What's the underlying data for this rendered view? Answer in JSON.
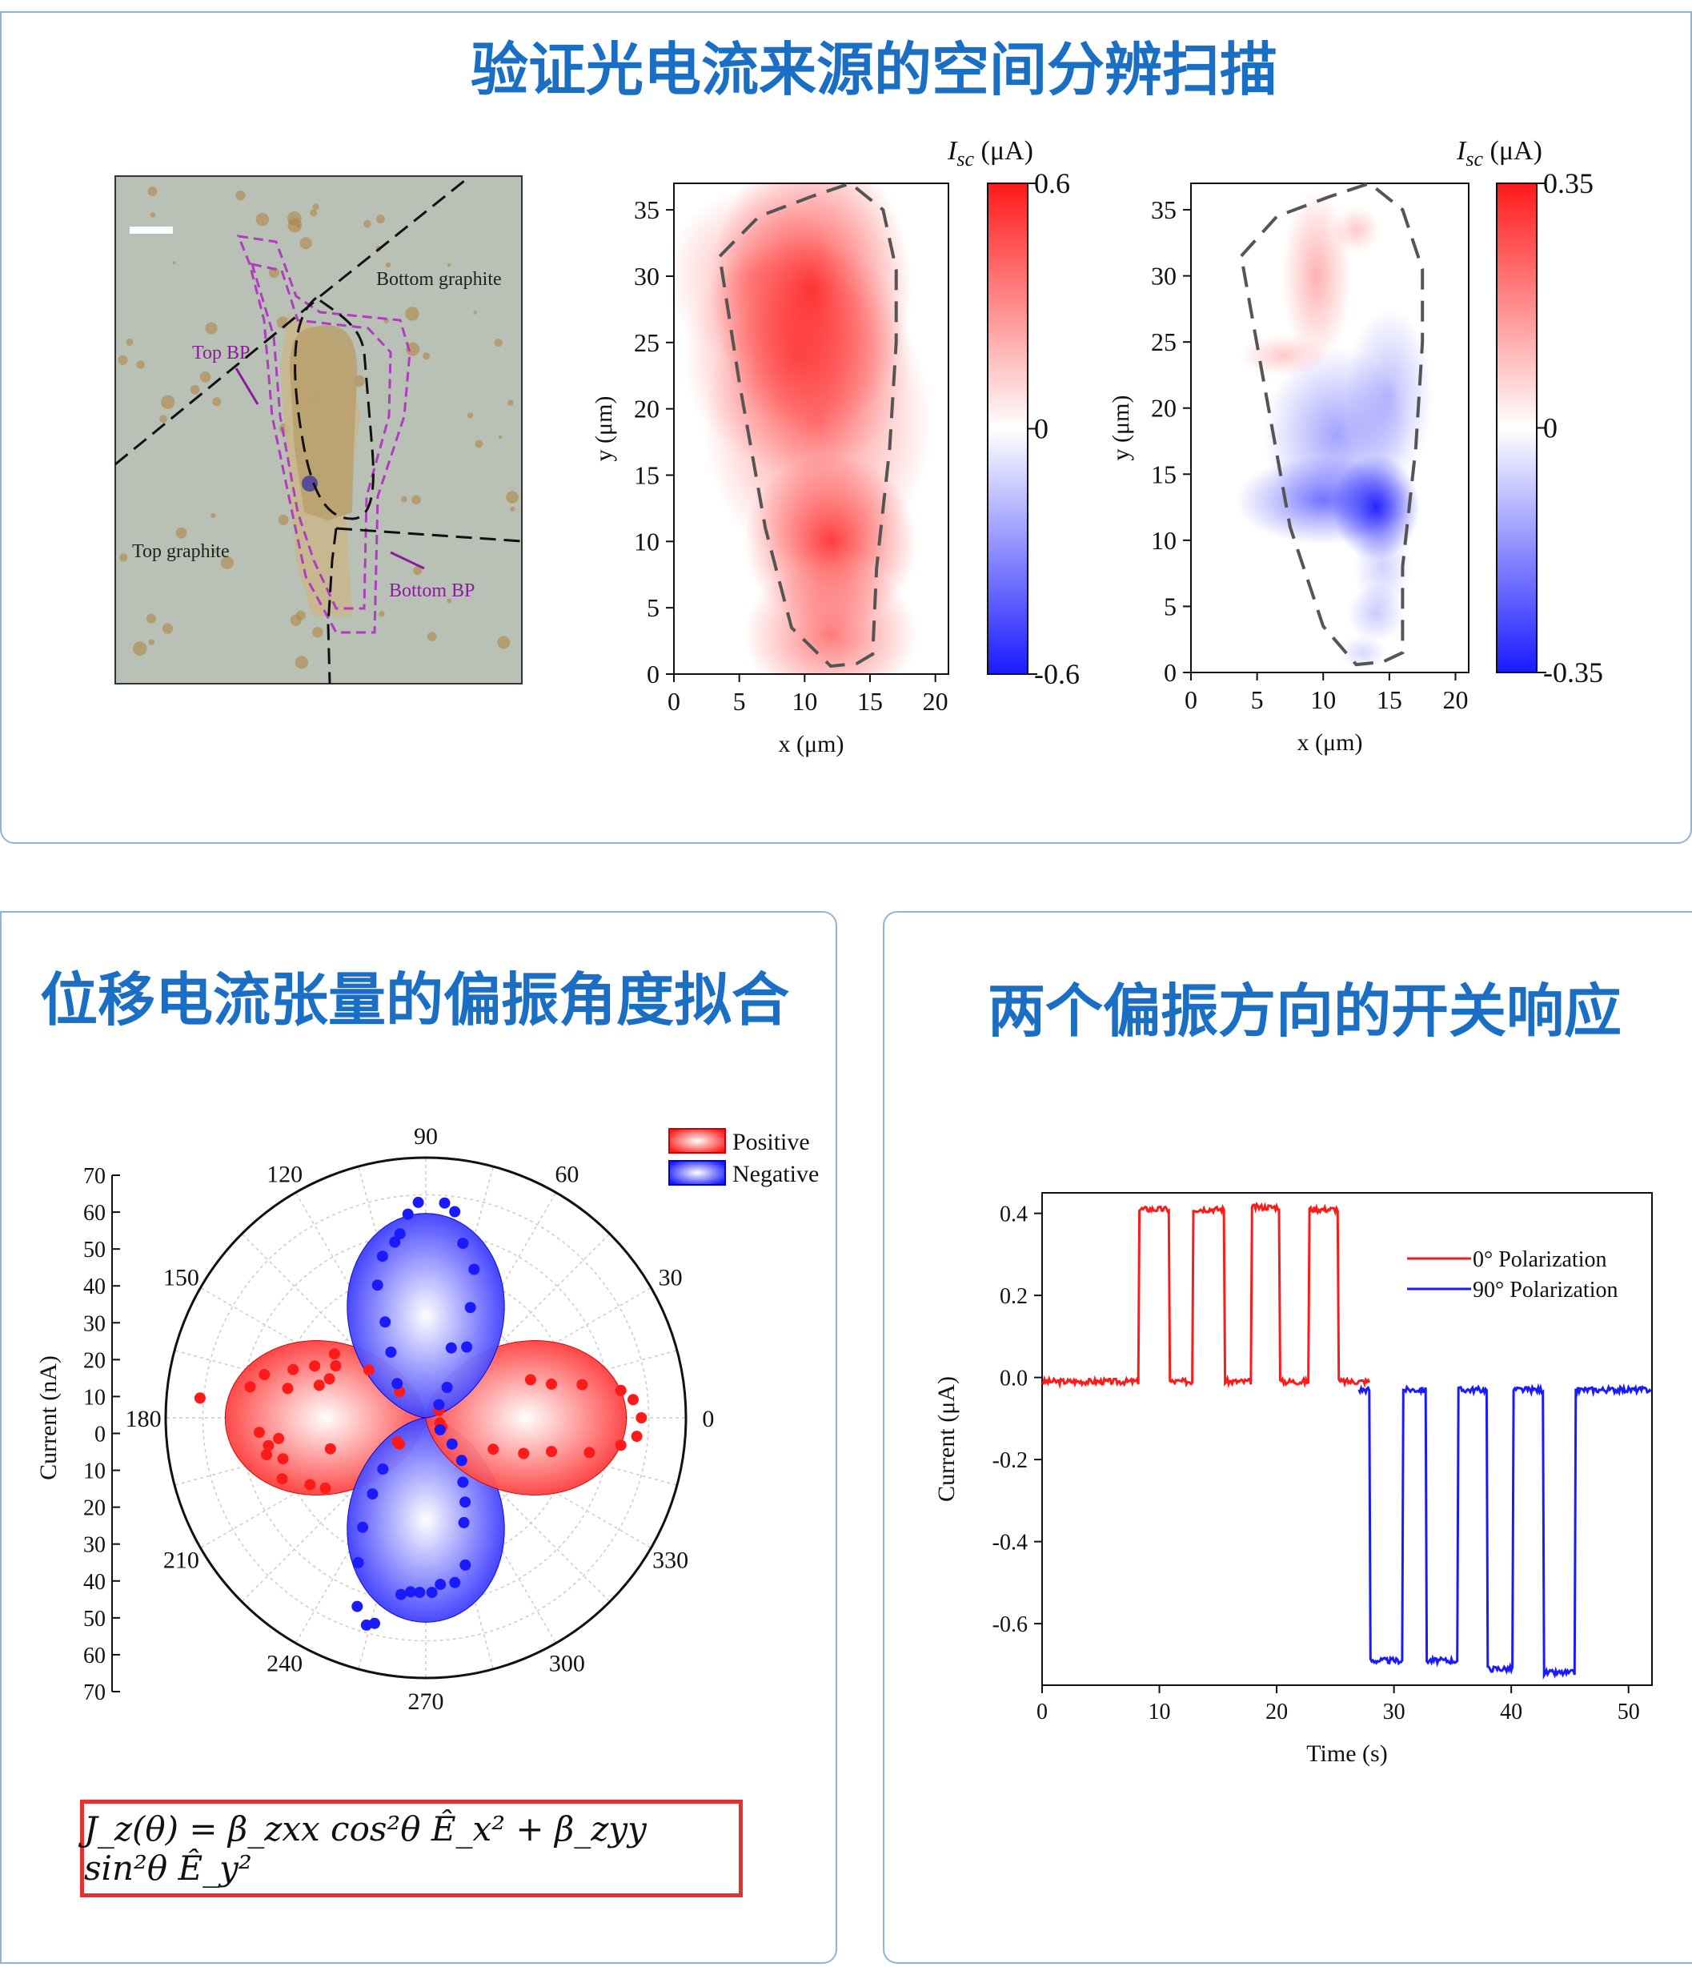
{
  "titles": {
    "top": "验证光电流来源的空间分辨扫描",
    "bottom_left": "位移电流张量的偏振角度拟合",
    "bottom_right": "两个偏振方向的开关响应"
  },
  "micrograph": {
    "labels": {
      "bottom_graphite": "Bottom graphite",
      "top_bp": "Top BP",
      "top_graphite": "Top graphite",
      "bottom_bp": "Bottom BP"
    },
    "colors": {
      "background": "#b9c0b6",
      "flake": "#c7b48a",
      "bp_outline": "#b03cc0",
      "dots": "#b07f3a"
    }
  },
  "equation": "J_z(θ) = β_zxx cos²θ Ê_x² + β_zyy sin²θ Ê_y²",
  "colors": {
    "red": "#ff1a1a",
    "blue": "#1a1aff",
    "title_blue": "#1a6fc4",
    "frame": "#8fb4d8"
  },
  "chart_data": [
    {
      "id": "map1",
      "type": "heatmap",
      "xlabel": "x (μm)",
      "ylabel": "y (μm)",
      "xlim": [
        0,
        21
      ],
      "ylim": [
        0,
        37
      ],
      "xticks": [
        0,
        5,
        10,
        15,
        20
      ],
      "yticks": [
        0,
        5,
        10,
        15,
        20,
        25,
        30,
        35
      ],
      "colorbar": {
        "title": "Isc (μA)",
        "max": 0.6,
        "min": -0.6,
        "ticks": [
          "0.6",
          "0",
          "-0.6"
        ]
      },
      "hotspots": [
        {
          "x": 10.5,
          "y": 29,
          "value": 0.5,
          "sx": 3.5,
          "sy": 5
        },
        {
          "x": 12,
          "y": 10,
          "value": 0.5,
          "sx": 3,
          "sy": 3
        },
        {
          "x": 11,
          "y": 19,
          "value": 0.3,
          "sx": 4,
          "sy": 5
        },
        {
          "x": 9.5,
          "y": 24,
          "value": 0.35,
          "sx": 4,
          "sy": 4
        },
        {
          "x": 12,
          "y": 3,
          "value": 0.35,
          "sx": 3,
          "sy": 2.5
        },
        {
          "x": 6,
          "y": 30,
          "value": 0.2,
          "sx": 3,
          "sy": 3
        }
      ],
      "outline": [
        [
          3.5,
          31.5
        ],
        [
          6.5,
          34.5
        ],
        [
          10.5,
          36
        ],
        [
          13.5,
          37
        ],
        [
          16,
          35
        ],
        [
          17,
          30.5
        ],
        [
          17,
          25
        ],
        [
          16.5,
          17
        ],
        [
          15.5,
          8
        ],
        [
          15.2,
          1.5
        ],
        [
          14,
          0.8
        ],
        [
          12,
          0.6
        ],
        [
          9,
          3.5
        ],
        [
          7,
          11
        ],
        [
          5,
          22
        ],
        [
          3.5,
          31.5
        ]
      ]
    },
    {
      "id": "map2",
      "type": "heatmap",
      "xlabel": "x (μm)",
      "ylabel": "y (μm)",
      "xlim": [
        0,
        21
      ],
      "ylim": [
        0,
        37
      ],
      "xticks": [
        0,
        5,
        10,
        15,
        20
      ],
      "yticks": [
        0,
        5,
        10,
        15,
        20,
        25,
        30,
        35
      ],
      "colorbar": {
        "title": "Isc (μA)",
        "max": 0.35,
        "min": -0.35,
        "ticks": [
          "0.35",
          "0",
          "-0.35"
        ]
      },
      "hotspots": [
        {
          "x": 9.5,
          "y": 30,
          "value": 0.12,
          "sx": 1.2,
          "sy": 3
        },
        {
          "x": 12.5,
          "y": 33.5,
          "value": 0.08,
          "sx": 0.8,
          "sy": 0.8
        },
        {
          "x": 7,
          "y": 24,
          "value": 0.08,
          "sx": 1.5,
          "sy": 0.7
        },
        {
          "x": 14,
          "y": 12.5,
          "value": -0.33,
          "sx": 1.5,
          "sy": 1.8
        },
        {
          "x": 10,
          "y": 13,
          "value": -0.2,
          "sx": 3,
          "sy": 1.5
        },
        {
          "x": 11,
          "y": 18,
          "value": -0.14,
          "sx": 2.5,
          "sy": 3
        },
        {
          "x": 15,
          "y": 21,
          "value": -0.1,
          "sx": 1.5,
          "sy": 3
        },
        {
          "x": 14,
          "y": 4.5,
          "value": -0.08,
          "sx": 1,
          "sy": 1
        },
        {
          "x": 14.5,
          "y": 8,
          "value": -0.07,
          "sx": 1,
          "sy": 1.5
        },
        {
          "x": 13,
          "y": 1.5,
          "value": -0.06,
          "sx": 0.8,
          "sy": 0.6
        }
      ],
      "outline": [
        [
          3.8,
          31.5
        ],
        [
          6.5,
          34.5
        ],
        [
          10.5,
          36
        ],
        [
          13.5,
          37
        ],
        [
          16,
          35
        ],
        [
          17.5,
          30.5
        ],
        [
          17.5,
          25
        ],
        [
          17,
          17
        ],
        [
          16,
          8
        ],
        [
          16,
          1.5
        ],
        [
          14.5,
          0.8
        ],
        [
          12.5,
          0.6
        ],
        [
          10,
          3.5
        ],
        [
          7.5,
          11
        ],
        [
          5.5,
          22
        ],
        [
          3.8,
          31.5
        ]
      ]
    },
    {
      "id": "polar",
      "type": "scatter",
      "coordinate": "polar",
      "ylabel": "Current (nA)",
      "rmax": 70,
      "radial_ticks": [
        "70",
        "60",
        "50",
        "40",
        "30",
        "20",
        "10",
        "0",
        "10",
        "20",
        "30",
        "40",
        "50",
        "60",
        "70"
      ],
      "angle_ticks": [
        0,
        30,
        60,
        90,
        120,
        150,
        180,
        210,
        240,
        270,
        300,
        330
      ],
      "legend": [
        "Positive",
        "Negative"
      ],
      "legend_position": "top-right",
      "fit": {
        "positive_amplitude": 54,
        "negative_amplitude": 55
      },
      "series": [
        {
          "name": "Positive",
          "points": [
            [
              0,
              58
            ],
            [
              5,
              56
            ],
            [
              8,
              53
            ],
            [
              12,
              43
            ],
            [
              15,
              35
            ],
            [
              20,
              30
            ],
            [
              -5,
              57
            ],
            [
              -8,
              53
            ],
            [
              -12,
              45
            ],
            [
              -15,
              35
            ],
            [
              -20,
              28
            ],
            [
              -25,
              20
            ],
            [
              175,
              61
            ],
            [
              170,
              48
            ],
            [
              168,
              38
            ],
            [
              165,
              45
            ],
            [
              163,
              30
            ],
            [
              160,
              38
            ],
            [
              158,
              28
            ],
            [
              155,
              33
            ],
            [
              150,
              28
            ],
            [
              185,
              45
            ],
            [
              188,
              40
            ],
            [
              190,
              43
            ],
            [
              193,
              44
            ],
            [
              196,
              40
            ],
            [
              198,
              27
            ],
            [
              203,
              42
            ],
            [
              210,
              36
            ],
            [
              215,
              33
            ],
            [
              145,
              30
            ],
            [
              140,
              20
            ],
            [
              135,
              10
            ],
            [
              220,
              10
            ],
            [
              225,
              10
            ],
            [
              330,
              5
            ],
            [
              340,
              4
            ],
            [
              30,
              4
            ]
          ]
        },
        {
          "name": "Negative",
          "points": [
            [
              92,
              58
            ],
            [
              95,
              55
            ],
            [
              98,
              50
            ],
            [
              100,
              48
            ],
            [
              105,
              45
            ],
            [
              110,
              38
            ],
            [
              113,
              28
            ],
            [
              118,
              20
            ],
            [
              85,
              58
            ],
            [
              82,
              56
            ],
            [
              78,
              48
            ],
            [
              72,
              42
            ],
            [
              68,
              32
            ],
            [
              60,
              22
            ],
            [
              55,
              10
            ],
            [
              45,
              5
            ],
            [
              268,
              47
            ],
            [
              265,
              47
            ],
            [
              262,
              48
            ],
            [
              256,
              57
            ],
            [
              254,
              58
            ],
            [
              250,
              54
            ],
            [
              245,
              43
            ],
            [
              240,
              34
            ],
            [
              235,
              25
            ],
            [
              230,
              18
            ],
            [
              272,
              47
            ],
            [
              275,
              45
            ],
            [
              280,
              45
            ],
            [
              285,
              41
            ],
            [
              290,
              30
            ],
            [
              295,
              25
            ],
            [
              300,
              20
            ],
            [
              310,
              15
            ],
            [
              315,
              10
            ],
            [
              320,
              5
            ],
            [
              130,
              12
            ],
            [
              70,
              20
            ]
          ]
        }
      ]
    },
    {
      "id": "switch",
      "type": "line",
      "xlabel": "Time (s)",
      "ylabel": "Current (μA)",
      "xlim": [
        0,
        52
      ],
      "ylim": [
        -0.75,
        0.45
      ],
      "xticks": [
        0,
        10,
        20,
        30,
        40,
        50
      ],
      "yticks": [
        0.4,
        0.2,
        0.0,
        -0.2,
        -0.4,
        -0.6
      ],
      "ytick_labels": [
        "0.4",
        "0.2",
        "0.0",
        "-0.2",
        "-0.4",
        "-0.6"
      ],
      "legend_position": "top-right",
      "series": [
        {
          "name": "0°  Polarization",
          "baseline": -0.01,
          "t_range": [
            0,
            28
          ],
          "pulses": [
            [
              8.2,
              10.8,
              0.41
            ],
            [
              12.8,
              15.5,
              0.41
            ],
            [
              17.8,
              20.3,
              0.415
            ],
            [
              22.8,
              25.3,
              0.41
            ]
          ]
        },
        {
          "name": "90° Polarization",
          "baseline": -0.03,
          "t_range": [
            27,
            52
          ],
          "pulses": [
            [
              28,
              30.8,
              -0.69
            ],
            [
              32.8,
              35.5,
              -0.69
            ],
            [
              38,
              40.2,
              -0.71
            ],
            [
              42.8,
              45.5,
              -0.72
            ]
          ]
        }
      ]
    }
  ]
}
